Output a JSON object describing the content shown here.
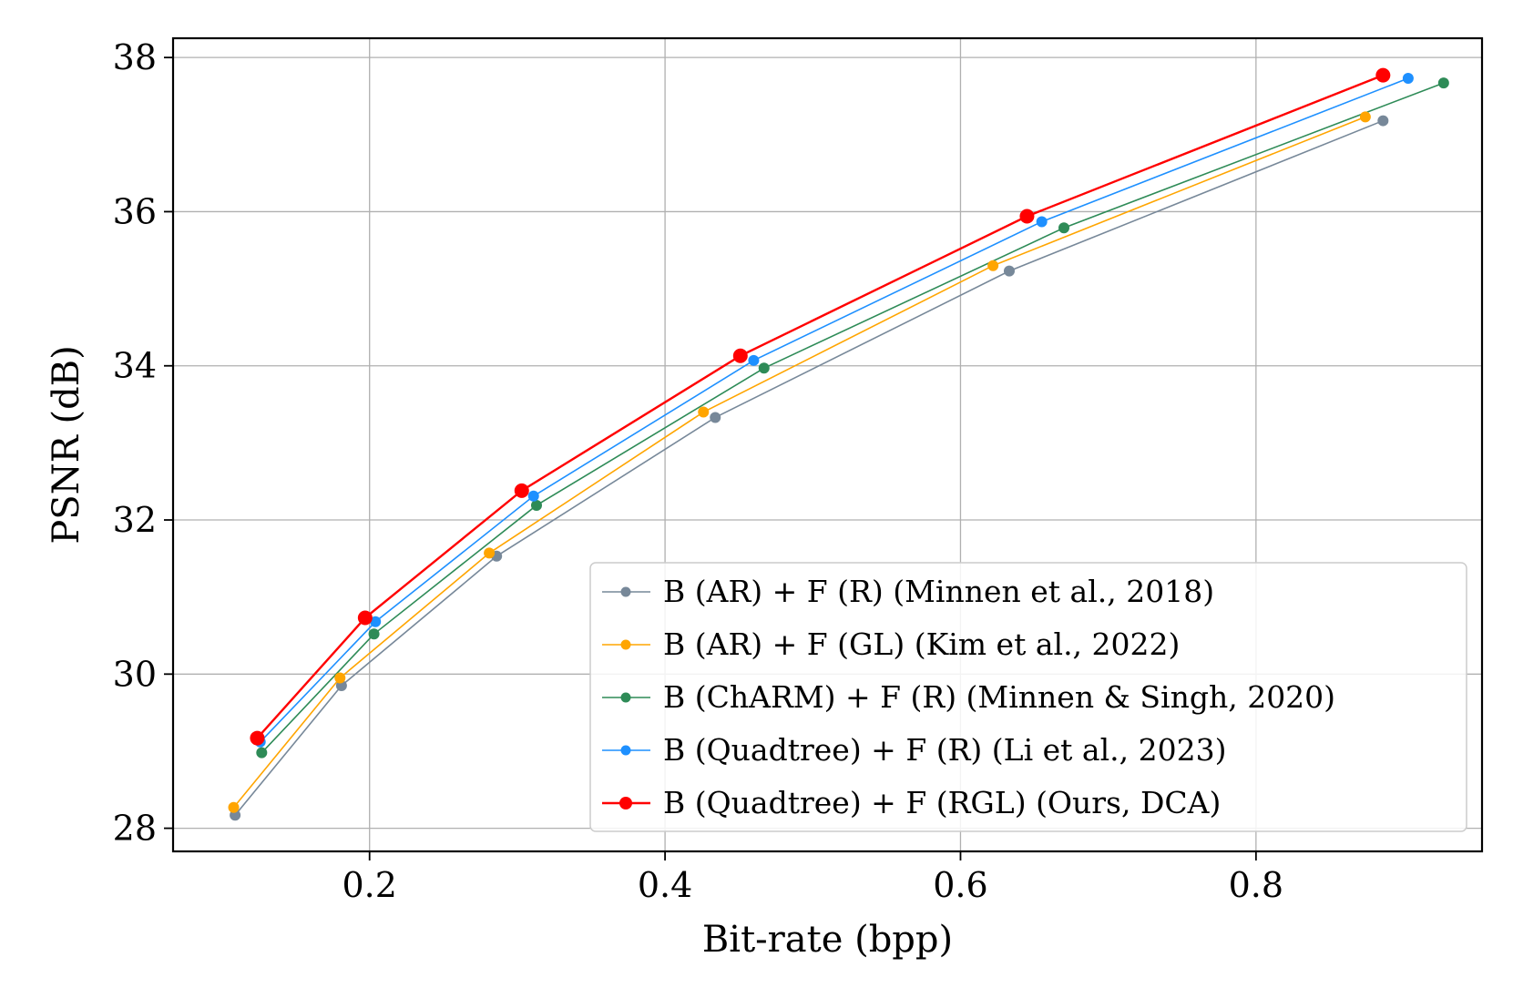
{
  "chart_data": {
    "type": "line",
    "title": "",
    "xlabel": "Bit-rate (bpp)",
    "ylabel": "PSNR (dB)",
    "xlim": [
      0.067,
      0.953
    ],
    "ylim": [
      27.7,
      38.25
    ],
    "xticks": [
      0.2,
      0.4,
      0.6,
      0.8
    ],
    "xtick_labels": [
      "0.2",
      "0.4",
      "0.6",
      "0.8"
    ],
    "yticks": [
      28,
      30,
      32,
      34,
      36,
      38
    ],
    "ytick_labels": [
      "28",
      "30",
      "32",
      "34",
      "36",
      "38"
    ],
    "grid": true,
    "legend_position": "bottom-right",
    "series": [
      {
        "name": "B (AR) + F (R) (Minnen et al., 2018)",
        "color": "#778899",
        "x": [
          0.109,
          0.181,
          0.286,
          0.434,
          0.633,
          0.886
        ],
        "y": [
          28.17,
          29.85,
          31.53,
          33.33,
          35.23,
          37.18
        ]
      },
      {
        "name": "B (AR) + F (GL) (Kim et al., 2022)",
        "color": "#FFA500",
        "x": [
          0.108,
          0.18,
          0.281,
          0.426,
          0.622,
          0.874
        ],
        "y": [
          28.27,
          29.95,
          31.57,
          33.4,
          35.3,
          37.23
        ]
      },
      {
        "name": "B (ChARM) + F (R) (Minnen & Singh, 2020)",
        "color": "#2E8B57",
        "x": [
          0.127,
          0.203,
          0.313,
          0.467,
          0.67,
          0.927
        ],
        "y": [
          28.98,
          30.52,
          32.19,
          33.97,
          35.79,
          37.67
        ]
      },
      {
        "name": "B (Quadtree) + F (R) (Li et al., 2023)",
        "color": "#1E90FF",
        "x": [
          0.126,
          0.204,
          0.311,
          0.46,
          0.655,
          0.903
        ],
        "y": [
          29.12,
          30.68,
          32.31,
          34.07,
          35.87,
          37.73
        ]
      },
      {
        "name": "B (Quadtree) + F (RGL) (Ours, DCA)",
        "color": "#FF0000",
        "x": [
          0.124,
          0.197,
          0.303,
          0.451,
          0.645,
          0.886
        ],
        "y": [
          29.17,
          30.73,
          32.38,
          34.13,
          35.94,
          37.77
        ]
      }
    ]
  }
}
